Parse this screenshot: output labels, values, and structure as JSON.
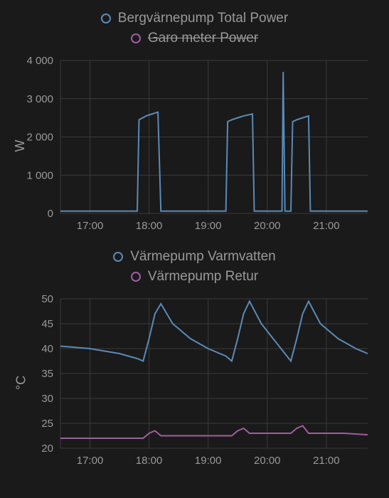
{
  "background_color": "#1a1a1a",
  "text_color": "#999999",
  "grid_color": "#3a3a3a",
  "chart1": {
    "type": "line",
    "legend": [
      {
        "label": "Bergvärnepump Total Power",
        "color": "#5a8ab8",
        "active": true
      },
      {
        "label": "Garo meter Power",
        "color": "#a05da0",
        "active": false
      }
    ],
    "y_label": "W",
    "ylim": [
      0,
      4000
    ],
    "yticks": [
      0,
      1000,
      2000,
      3000,
      4000
    ],
    "ytick_labels": [
      "0",
      "1 000",
      "2 000",
      "3 000",
      "4 000"
    ],
    "xticks": [
      "17:00",
      "18:00",
      "19:00",
      "20:00",
      "21:00"
    ],
    "x_range": [
      16.5,
      21.7
    ],
    "series": [
      {
        "color": "#5a8ab8",
        "points": [
          [
            16.5,
            60
          ],
          [
            17.8,
            60
          ],
          [
            17.83,
            2450
          ],
          [
            17.95,
            2550
          ],
          [
            18.05,
            2600
          ],
          [
            18.15,
            2650
          ],
          [
            18.2,
            60
          ],
          [
            19.3,
            60
          ],
          [
            19.33,
            2400
          ],
          [
            19.4,
            2450
          ],
          [
            19.5,
            2500
          ],
          [
            19.6,
            2550
          ],
          [
            19.75,
            2600
          ],
          [
            19.78,
            60
          ],
          [
            20.25,
            60
          ],
          [
            20.27,
            3700
          ],
          [
            20.3,
            60
          ],
          [
            20.4,
            60
          ],
          [
            20.43,
            2400
          ],
          [
            20.5,
            2450
          ],
          [
            20.6,
            2500
          ],
          [
            20.7,
            2550
          ],
          [
            20.73,
            60
          ],
          [
            21.7,
            60
          ]
        ]
      }
    ]
  },
  "chart2": {
    "type": "line",
    "legend": [
      {
        "label": "Värmepump Varmvatten",
        "color": "#5a8ab8",
        "active": true
      },
      {
        "label": "Värmepump Retur",
        "color": "#a05da0",
        "active": true
      }
    ],
    "y_label": "°C",
    "ylim": [
      20,
      50
    ],
    "yticks": [
      20,
      25,
      30,
      35,
      40,
      45,
      50
    ],
    "ytick_labels": [
      "20",
      "25",
      "30",
      "35",
      "40",
      "45",
      "50"
    ],
    "xticks": [
      "17:00",
      "18:00",
      "19:00",
      "20:00",
      "21:00"
    ],
    "x_range": [
      16.5,
      21.7
    ],
    "series": [
      {
        "color": "#5a8ab8",
        "points": [
          [
            16.5,
            40.5
          ],
          [
            17.0,
            40
          ],
          [
            17.5,
            39
          ],
          [
            17.8,
            38
          ],
          [
            17.9,
            37.5
          ],
          [
            18.0,
            42
          ],
          [
            18.1,
            47
          ],
          [
            18.2,
            49
          ],
          [
            18.4,
            45
          ],
          [
            18.7,
            42
          ],
          [
            19.0,
            40
          ],
          [
            19.3,
            38.5
          ],
          [
            19.4,
            37.5
          ],
          [
            19.5,
            42
          ],
          [
            19.6,
            47
          ],
          [
            19.7,
            49.5
          ],
          [
            19.9,
            45
          ],
          [
            20.1,
            42
          ],
          [
            20.3,
            39
          ],
          [
            20.4,
            37.5
          ],
          [
            20.5,
            42
          ],
          [
            20.6,
            47
          ],
          [
            20.7,
            49.5
          ],
          [
            20.9,
            45
          ],
          [
            21.2,
            42
          ],
          [
            21.5,
            40
          ],
          [
            21.7,
            39
          ]
        ]
      },
      {
        "color": "#a05da0",
        "points": [
          [
            16.5,
            22
          ],
          [
            17.0,
            22
          ],
          [
            17.5,
            22
          ],
          [
            17.8,
            22
          ],
          [
            17.9,
            22
          ],
          [
            18.0,
            23
          ],
          [
            18.1,
            23.5
          ],
          [
            18.2,
            22.5
          ],
          [
            18.5,
            22.5
          ],
          [
            19.0,
            22.5
          ],
          [
            19.3,
            22.5
          ],
          [
            19.4,
            22.5
          ],
          [
            19.5,
            23.5
          ],
          [
            19.6,
            24
          ],
          [
            19.7,
            23
          ],
          [
            20.0,
            23
          ],
          [
            20.3,
            23
          ],
          [
            20.4,
            23
          ],
          [
            20.5,
            24
          ],
          [
            20.6,
            24.5
          ],
          [
            20.7,
            23
          ],
          [
            21.0,
            23
          ],
          [
            21.3,
            23
          ],
          [
            21.7,
            22.7
          ]
        ]
      }
    ]
  }
}
